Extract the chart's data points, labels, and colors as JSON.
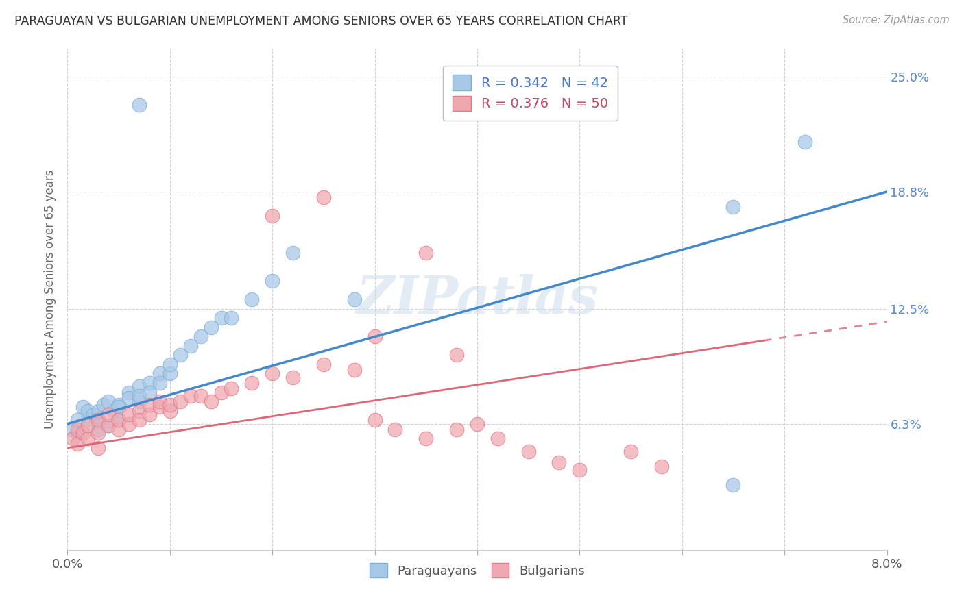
{
  "title": "PARAGUAYAN VS BULGARIAN UNEMPLOYMENT AMONG SENIORS OVER 65 YEARS CORRELATION CHART",
  "source": "Source: ZipAtlas.com",
  "ylabel": "Unemployment Among Seniors over 65 years",
  "xlim": [
    0.0,
    0.08
  ],
  "ylim": [
    -0.005,
    0.265
  ],
  "xtick_positions": [
    0.0,
    0.01,
    0.02,
    0.03,
    0.04,
    0.05,
    0.06,
    0.07,
    0.08
  ],
  "xtick_labels": [
    "0.0%",
    "",
    "",
    "",
    "",
    "",
    "",
    "",
    "8.0%"
  ],
  "ytick_positions": [
    0.063,
    0.125,
    0.188,
    0.25
  ],
  "ytick_labels": [
    "6.3%",
    "12.5%",
    "18.8%",
    "25.0%"
  ],
  "blue_fill": "#a8c8e8",
  "blue_edge": "#7ab0d4",
  "pink_fill": "#f0a8b0",
  "pink_edge": "#e07888",
  "blue_line_color": "#4488cc",
  "pink_line_color": "#dd6677",
  "legend_blue_r": "0.342",
  "legend_blue_n": "42",
  "legend_pink_r": "0.376",
  "legend_pink_n": "50",
  "watermark": "ZIPatlas",
  "blue_line_x0": 0.0,
  "blue_line_y0": 0.063,
  "blue_line_x1": 0.08,
  "blue_line_y1": 0.188,
  "pink_line_x0": 0.0,
  "pink_line_y0": 0.05,
  "pink_line_x1": 0.08,
  "pink_line_y1": 0.118,
  "blue_scatter_x": [
    0.0005,
    0.001,
    0.001,
    0.0015,
    0.002,
    0.002,
    0.0025,
    0.003,
    0.003,
    0.003,
    0.0035,
    0.004,
    0.004,
    0.0045,
    0.005,
    0.005,
    0.005,
    0.006,
    0.006,
    0.007,
    0.007,
    0.007,
    0.008,
    0.008,
    0.009,
    0.009,
    0.01,
    0.01,
    0.011,
    0.012,
    0.013,
    0.014,
    0.015,
    0.016,
    0.018,
    0.02,
    0.022,
    0.028,
    0.065,
    0.065,
    0.072,
    0.007
  ],
  "blue_scatter_y": [
    0.06,
    0.065,
    0.058,
    0.072,
    0.065,
    0.07,
    0.068,
    0.06,
    0.065,
    0.07,
    0.073,
    0.062,
    0.075,
    0.07,
    0.073,
    0.065,
    0.072,
    0.08,
    0.077,
    0.075,
    0.083,
    0.078,
    0.085,
    0.08,
    0.09,
    0.085,
    0.09,
    0.095,
    0.1,
    0.105,
    0.11,
    0.115,
    0.12,
    0.12,
    0.13,
    0.14,
    0.155,
    0.13,
    0.18,
    0.03,
    0.215,
    0.235
  ],
  "pink_scatter_x": [
    0.0005,
    0.001,
    0.001,
    0.0015,
    0.002,
    0.002,
    0.003,
    0.003,
    0.003,
    0.004,
    0.004,
    0.005,
    0.005,
    0.006,
    0.006,
    0.007,
    0.007,
    0.008,
    0.008,
    0.009,
    0.009,
    0.01,
    0.01,
    0.011,
    0.012,
    0.013,
    0.014,
    0.015,
    0.016,
    0.018,
    0.02,
    0.022,
    0.025,
    0.028,
    0.03,
    0.032,
    0.035,
    0.038,
    0.04,
    0.042,
    0.045,
    0.048,
    0.05,
    0.035,
    0.055,
    0.058,
    0.02,
    0.025,
    0.03,
    0.038
  ],
  "pink_scatter_y": [
    0.055,
    0.052,
    0.06,
    0.058,
    0.055,
    0.062,
    0.05,
    0.058,
    0.065,
    0.062,
    0.068,
    0.06,
    0.065,
    0.063,
    0.068,
    0.07,
    0.065,
    0.068,
    0.073,
    0.072,
    0.075,
    0.07,
    0.073,
    0.075,
    0.078,
    0.078,
    0.075,
    0.08,
    0.082,
    0.085,
    0.09,
    0.088,
    0.095,
    0.092,
    0.065,
    0.06,
    0.055,
    0.06,
    0.063,
    0.055,
    0.048,
    0.042,
    0.038,
    0.155,
    0.048,
    0.04,
    0.175,
    0.185,
    0.11,
    0.1
  ]
}
